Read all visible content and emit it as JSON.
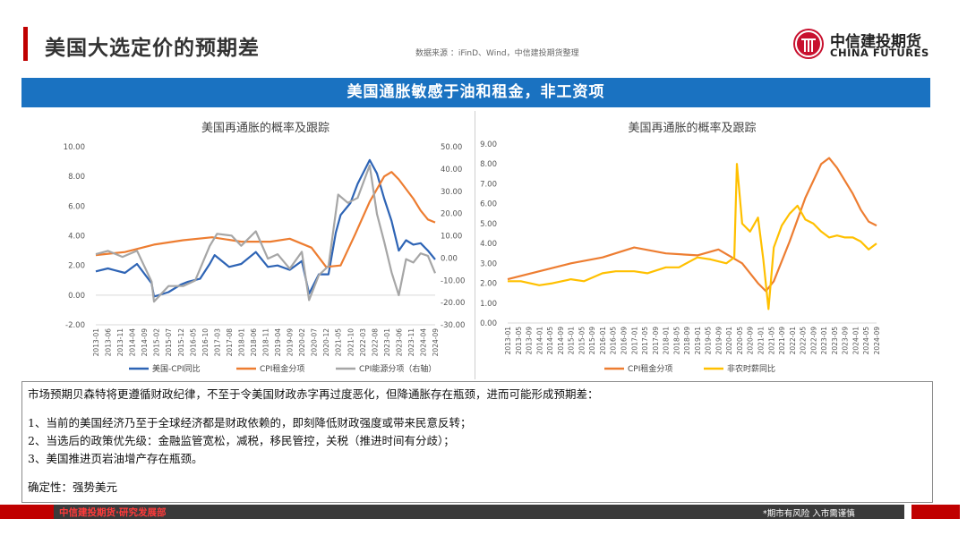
{
  "header": {
    "title": "美国大选定价的预期差",
    "source": "数据来源 ：iFinD、Wind，中信建投期货整理",
    "logo_cn": "中信建投期货",
    "logo_en": "CHINA FUTURES"
  },
  "banner": "美国通胀敏感于油和租金，非工资项",
  "chart_data": [
    {
      "type": "line",
      "title": "美国再通胀的概率及跟踪",
      "x_ticks": [
        "2013-01",
        "2013-06",
        "2013-11",
        "2014-04",
        "2014-09",
        "2015-02",
        "2015-07",
        "2015-12",
        "2016-05",
        "2016-10",
        "2017-03",
        "2017-08",
        "2018-01",
        "2018-06",
        "2018-11",
        "2019-04",
        "2019-09",
        "2020-02",
        "2020-07",
        "2020-12",
        "2021-05",
        "2021-10",
        "2022-03",
        "2022-08",
        "2023-01",
        "2023-06",
        "2023-11",
        "2024-04",
        "2024-09"
      ],
      "y_left_ticks": [
        "10.00",
        "8.00",
        "6.00",
        "4.00",
        "2.00",
        "0.00",
        "-2.00"
      ],
      "y_left_lim": [
        -2,
        10
      ],
      "y_right_ticks": [
        "50.00",
        "40.00",
        "30.00",
        "20.00",
        "10.00",
        "0.00",
        "-10.00",
        "-20.00",
        "-30.00"
      ],
      "y_right_lim": [
        -30,
        50
      ],
      "series": [
        {
          "name": "美国-CPI同比",
          "color": "#2e64b5",
          "axis": "left",
          "x": [
            "2013-01",
            "2013-06",
            "2014-01",
            "2014-06",
            "2014-12",
            "2015-01",
            "2015-07",
            "2015-12",
            "2016-03",
            "2016-08",
            "2016-12",
            "2017-02",
            "2017-08",
            "2018-01",
            "2018-07",
            "2018-12",
            "2019-04",
            "2019-09",
            "2020-02",
            "2020-05",
            "2020-09",
            "2021-01",
            "2021-04",
            "2021-06",
            "2021-10",
            "2022-01",
            "2022-06",
            "2022-09",
            "2022-12",
            "2023-03",
            "2023-06",
            "2023-09",
            "2023-12",
            "2024-03",
            "2024-06",
            "2024-09"
          ],
          "values": [
            1.6,
            1.8,
            1.5,
            2.1,
            0.8,
            -0.1,
            0.2,
            0.7,
            0.9,
            1.1,
            2.1,
            2.7,
            1.9,
            2.1,
            2.9,
            1.9,
            2.0,
            1.7,
            2.3,
            0.1,
            1.4,
            1.4,
            4.2,
            5.4,
            6.2,
            7.5,
            9.1,
            8.2,
            6.5,
            5.0,
            3.0,
            3.7,
            3.4,
            3.5,
            3.0,
            2.4
          ]
        },
        {
          "name": "CPI租金分项",
          "color": "#ed7d31",
          "axis": "left",
          "x": [
            "2013-01",
            "2014-01",
            "2015-01",
            "2016-01",
            "2017-01",
            "2018-01",
            "2019-01",
            "2019-09",
            "2020-06",
            "2020-12",
            "2021-06",
            "2021-12",
            "2022-06",
            "2022-12",
            "2023-03",
            "2023-06",
            "2023-12",
            "2024-03",
            "2024-06",
            "2024-09"
          ],
          "values": [
            2.7,
            2.9,
            3.4,
            3.7,
            3.9,
            3.6,
            3.6,
            3.8,
            3.2,
            1.9,
            2.0,
            4.1,
            6.3,
            8.0,
            8.3,
            7.8,
            6.5,
            5.7,
            5.1,
            4.9
          ]
        },
        {
          "name": "CPI能源分项（右轴）",
          "color": "#a6a6a6",
          "axis": "right",
          "x": [
            "2013-01",
            "2013-06",
            "2013-12",
            "2014-06",
            "2014-12",
            "2015-01",
            "2015-07",
            "2016-01",
            "2016-06",
            "2016-12",
            "2017-03",
            "2017-09",
            "2018-01",
            "2018-07",
            "2018-12",
            "2019-04",
            "2019-09",
            "2020-02",
            "2020-05",
            "2020-09",
            "2021-01",
            "2021-05",
            "2021-09",
            "2022-01",
            "2022-06",
            "2022-09",
            "2022-12",
            "2023-03",
            "2023-06",
            "2023-09",
            "2023-12",
            "2024-03",
            "2024-06",
            "2024-09"
          ],
          "values": [
            1.7,
            3.2,
            0.5,
            3.3,
            -10.6,
            -19.6,
            -12.6,
            -12.6,
            -10.1,
            5.4,
            10.9,
            10.1,
            5.5,
            12.0,
            -0.3,
            1.7,
            -4.8,
            2.8,
            -18.9,
            -7.7,
            -3.6,
            28.5,
            24.8,
            27.0,
            41.6,
            19.8,
            7.3,
            -6.4,
            -16.7,
            -0.5,
            -2.0,
            2.1,
            1.0,
            -6.8
          ]
        }
      ],
      "legend": "bottom"
    },
    {
      "type": "line",
      "title": "美国再通胀的概率及跟踪",
      "x_ticks": [
        "2013-01",
        "2013-05",
        "2013-09",
        "2014-01",
        "2014-05",
        "2014-09",
        "2015-01",
        "2015-05",
        "2015-09",
        "2016-01",
        "2016-05",
        "2016-09",
        "2017-01",
        "2017-05",
        "2017-09",
        "2018-01",
        "2018-05",
        "2018-09",
        "2019-01",
        "2019-05",
        "2019-09",
        "2020-01",
        "2020-05",
        "2020-09",
        "2021-01",
        "2021-05",
        "2021-09",
        "2022-01",
        "2022-05",
        "2022-09",
        "2023-01",
        "2023-05",
        "2023-09",
        "2024-01",
        "2024-05",
        "2024-09"
      ],
      "y_ticks": [
        "9.00",
        "8.00",
        "7.00",
        "6.00",
        "5.00",
        "4.00",
        "3.00",
        "2.00",
        "1.00",
        "0.00"
      ],
      "y_lim": [
        0,
        9
      ],
      "series": [
        {
          "name": "CPI租金分项",
          "color": "#ed7d31",
          "x": [
            "2013-01",
            "2014-01",
            "2015-01",
            "2016-01",
            "2017-01",
            "2018-01",
            "2019-01",
            "2019-09",
            "2020-06",
            "2020-12",
            "2021-03",
            "2021-06",
            "2021-12",
            "2022-06",
            "2022-12",
            "2023-03",
            "2023-06",
            "2023-12",
            "2024-03",
            "2024-06",
            "2024-09"
          ],
          "values": [
            2.2,
            2.6,
            3.0,
            3.3,
            3.8,
            3.5,
            3.4,
            3.7,
            3.0,
            2.0,
            1.6,
            2.1,
            4.1,
            6.3,
            8.0,
            8.3,
            7.8,
            6.5,
            5.7,
            5.1,
            4.9
          ]
        },
        {
          "name": "非农时薪同比",
          "color": "#ffc000",
          "x": [
            "2013-01",
            "2013-06",
            "2014-01",
            "2014-06",
            "2015-01",
            "2015-06",
            "2016-01",
            "2016-06",
            "2017-01",
            "2017-06",
            "2018-01",
            "2018-06",
            "2019-01",
            "2019-06",
            "2019-12",
            "2020-03",
            "2020-04",
            "2020-06",
            "2020-09",
            "2020-12",
            "2021-02",
            "2021-04",
            "2021-06",
            "2021-09",
            "2021-12",
            "2022-03",
            "2022-06",
            "2022-09",
            "2022-12",
            "2023-03",
            "2023-06",
            "2023-09",
            "2023-12",
            "2024-03",
            "2024-06",
            "2024-09"
          ],
          "values": [
            2.1,
            2.1,
            1.9,
            2.0,
            2.2,
            2.1,
            2.5,
            2.6,
            2.6,
            2.5,
            2.8,
            2.8,
            3.3,
            3.2,
            3.0,
            3.3,
            8.0,
            5.0,
            4.6,
            5.3,
            3.2,
            0.7,
            3.8,
            4.9,
            5.5,
            5.9,
            5.2,
            5.0,
            4.6,
            4.3,
            4.4,
            4.3,
            4.3,
            4.1,
            3.7,
            4.0
          ]
        }
      ],
      "legend": "bottom"
    }
  ],
  "textbox": {
    "line1": "市场预期贝森特将更遵循财政纪律，不至于令美国财政赤字再过度恶化，但降通胀存在瓶颈，进而可能形成预期差：",
    "line2": "1、当前的美国经济乃至于全球经济都是财政依赖的，即刻降低财政强度或带来民意反转；",
    "line3": "2、当选后的政策优先级：金融监管宽松，减税，移民管控，关税（推进时间有分歧）；",
    "line4": "3、美国推进页岩油增产存在瓶颈。",
    "line5": "确定性：强势美元"
  },
  "footer": {
    "left": "中信建投期货·研究发展部",
    "right": "*期市有风险  入市需谨慎"
  }
}
